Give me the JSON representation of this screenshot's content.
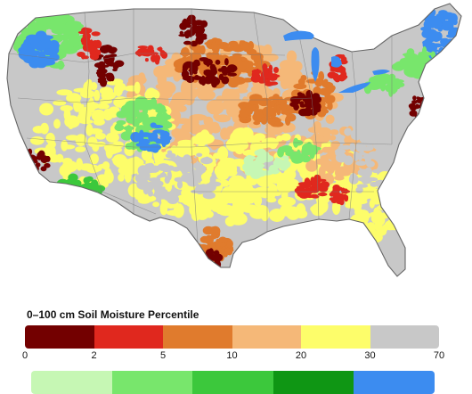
{
  "legend": {
    "title": "0–100 cm Soil Moisture Percentile",
    "dry_ticks": [
      "0",
      "2",
      "5",
      "10",
      "20",
      "30",
      "70"
    ],
    "dry_colors": [
      "#730000",
      "#e0281e",
      "#e07b2d",
      "#f5b878",
      "#fdfd6a",
      "#c8c8c8"
    ],
    "wet_colors": [
      "#c6f7b4",
      "#78e66c",
      "#3cc83c",
      "#0f9614",
      "#3c8cf0"
    ]
  },
  "map": {
    "background": "#ffffff",
    "land_base": "#c8c8c8",
    "border_color": "#777777",
    "lake_color": "#3c8cf0"
  }
}
